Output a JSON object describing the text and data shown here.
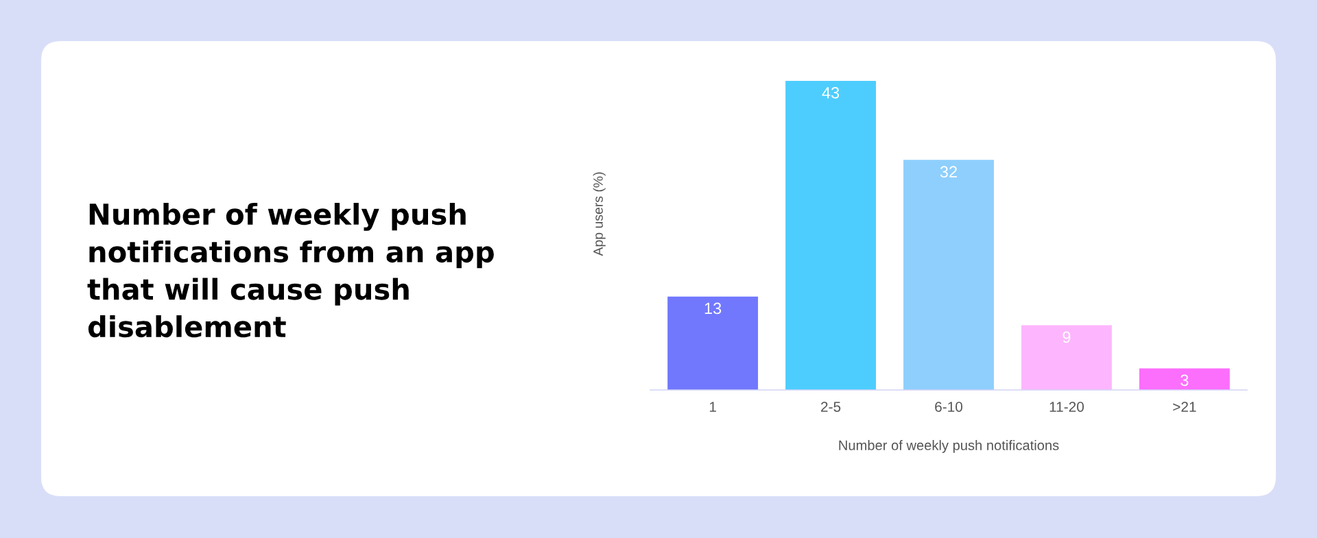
{
  "chart_data": {
    "type": "bar",
    "title": "Number of weekly push notifications from an app that will cause push disablement",
    "xlabel": "Number of weekly push notifications",
    "ylabel": "App users (%)",
    "categories": [
      "1",
      "2-5",
      "6-10",
      "11-20",
      ">21"
    ],
    "values": [
      13,
      43,
      32,
      9,
      3
    ],
    "colors": [
      "#7178fd",
      "#4dcdfe",
      "#8ecffd",
      "#fdb6fd",
      "#fc6efc"
    ],
    "data_labels": true,
    "tick_labels": "x"
  }
}
